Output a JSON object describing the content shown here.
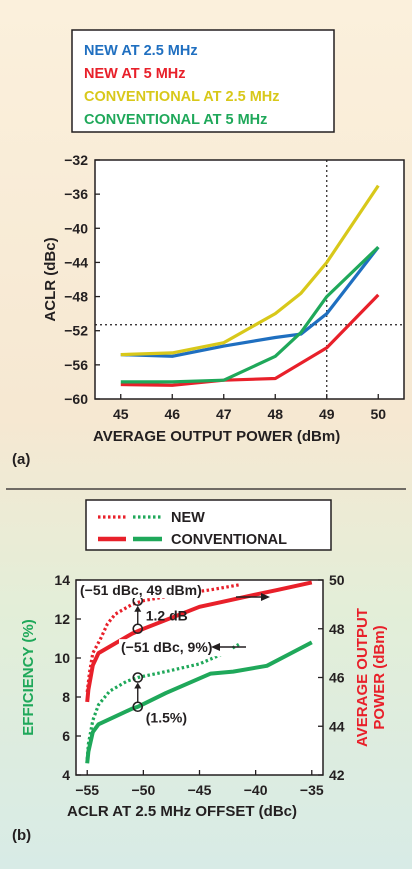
{
  "chart_data": [
    {
      "panel_label": "(a)",
      "type": "line",
      "xlabel": "AVERAGE  OUTPUT POWER (dBm)",
      "ylabel": "ACLR (dBc)",
      "xlim": [
        44.5,
        50.5
      ],
      "ylim": [
        -60,
        -32
      ],
      "xticks": [
        45,
        46,
        47,
        48,
        49,
        50
      ],
      "xtick_labels": [
        "45",
        "46",
        "47",
        "48",
        "49",
        "50"
      ],
      "yticks": [
        -32,
        -36,
        -40,
        -44,
        -48,
        -52,
        -56,
        -60
      ],
      "ytick_labels": [
        "−32",
        "−36",
        "−40",
        "−44",
        "−48",
        "−52",
        "−56",
        "−60"
      ],
      "grid": false,
      "legend_position": "top, boxed",
      "reference_lines": {
        "x": 49,
        "y": -51.3,
        "style": "dotted"
      },
      "series": [
        {
          "name": "NEW AT 2.5 MHz",
          "color": "#1f6fc0",
          "x": [
            45,
            46,
            47,
            48,
            48.5,
            49,
            50
          ],
          "y": [
            -54.8,
            -55.0,
            -53.8,
            -52.8,
            -52.4,
            -50.0,
            -42.2
          ]
        },
        {
          "name": "NEW AT 5 MHz",
          "color": "#e8202a",
          "x": [
            45,
            46,
            47,
            48,
            49,
            50
          ],
          "y": [
            -58.3,
            -58.4,
            -57.8,
            -57.6,
            -54.0,
            -47.8
          ]
        },
        {
          "name": "CONVENTIONAL AT 2.5 MHz",
          "color": "#d8c81a",
          "x": [
            45,
            46,
            47,
            48,
            48.5,
            49,
            50
          ],
          "y": [
            -54.8,
            -54.6,
            -53.4,
            -50.0,
            -47.6,
            -44.0,
            -35.0
          ]
        },
        {
          "name": "CONVENTIONAL AT 5 MHz",
          "color": "#1fa85a",
          "x": [
            45,
            46,
            47,
            48,
            48.5,
            49,
            50
          ],
          "y": [
            -58.0,
            -58.0,
            -57.8,
            -55.0,
            -52.2,
            -48.0,
            -42.2
          ]
        }
      ]
    },
    {
      "panel_label": "(b)",
      "type": "line",
      "xlabel": "ACLR AT 2.5 MHz OFFSET (dBc)",
      "ylabel": "EFFICIENCY (%)",
      "ylabel_right": "AVERAGE OUTPUT POWER (dBm)",
      "ylabel_right_lines": [
        "AVERAGE OUTPUT",
        "POWER (dBm)"
      ],
      "xlim": [
        -56,
        -34
      ],
      "ylim": [
        4,
        14
      ],
      "ylim_right": [
        42,
        50
      ],
      "xticks": [
        -55,
        -50,
        -45,
        -40,
        -35
      ],
      "xtick_labels": [
        "−55",
        "−50",
        "−45",
        "−40",
        "−35"
      ],
      "yticks": [
        4,
        6,
        8,
        10,
        12,
        14
      ],
      "ytick_labels": [
        "4",
        "6",
        "8",
        "10",
        "12",
        "14"
      ],
      "yticks_right": [
        42,
        44,
        46,
        48,
        50
      ],
      "ytick_labels_right": [
        "42",
        "44",
        "46",
        "48",
        "50"
      ],
      "grid": false,
      "legend_position": "top, boxed",
      "legend": [
        {
          "label": "NEW",
          "style": "dotted"
        },
        {
          "label": "CONVENTIONAL",
          "style": "solid"
        }
      ],
      "colors": {
        "efficiency": "#1fa85a",
        "power": "#e8202a"
      },
      "series": [
        {
          "name": "NEW",
          "quantity": "efficiency",
          "axis": "left",
          "style": "dotted",
          "color": "#1fa85a",
          "x": [
            -55,
            -54.9,
            -54.5,
            -54.0,
            -53.0,
            -51.5,
            -50.5,
            -48.0,
            -45.0,
            -43.0,
            -41.5
          ],
          "y": [
            4.8,
            5.6,
            6.8,
            7.6,
            8.3,
            8.8,
            9.0,
            9.3,
            9.7,
            10.2,
            10.7
          ]
        },
        {
          "name": "CONVENTIONAL",
          "quantity": "efficiency",
          "axis": "left",
          "style": "solid",
          "color": "#1fa85a",
          "x": [
            -55,
            -54.9,
            -54.5,
            -54.0,
            -51.0,
            -50.5,
            -48.0,
            -44.0,
            -42.0,
            -39.0,
            -37.0,
            -35.0
          ],
          "y": [
            4.6,
            5.2,
            6.2,
            6.6,
            7.4,
            7.5,
            8.2,
            9.2,
            9.3,
            9.6,
            10.2,
            10.8
          ]
        },
        {
          "name": "NEW",
          "quantity": "average_output_power",
          "axis": "right",
          "style": "dotted",
          "color": "#e8202a",
          "x": [
            -55,
            -54.8,
            -54.5,
            -53.8,
            -53.2,
            -52.5,
            -51.0,
            -50.0,
            -47.0,
            -44.0,
            -41.5
          ],
          "y": [
            45.4,
            46.2,
            47.0,
            47.6,
            48.2,
            48.6,
            49.0,
            49.15,
            49.4,
            49.6,
            49.8
          ]
        },
        {
          "name": "CONVENTIONAL",
          "quantity": "average_output_power",
          "axis": "right",
          "style": "solid",
          "color": "#e8202a",
          "x": [
            -55,
            -54.9,
            -54.5,
            -54.0,
            -51.0,
            -50.0,
            -45.0,
            -43.0,
            -40.0,
            -38.0,
            -35.0
          ],
          "y": [
            45.0,
            45.5,
            46.5,
            47.0,
            47.8,
            48.0,
            48.9,
            49.1,
            49.4,
            49.6,
            49.9
          ]
        }
      ],
      "annotations": [
        {
          "text": "(−51 dBc, 49 dBm)",
          "x": -50.5,
          "y_right": 49.15
        },
        {
          "text": "1.2 dB",
          "x": -50.5,
          "y_right_from": 48.0,
          "y_right_to": 49.15
        },
        {
          "text": "(−51 dBc, 9%)",
          "x": -50.5,
          "y": 9.0
        },
        {
          "text": "(1.5%)",
          "x": -50.5,
          "y_from": 7.5,
          "y_to": 9.0
        }
      ]
    }
  ]
}
